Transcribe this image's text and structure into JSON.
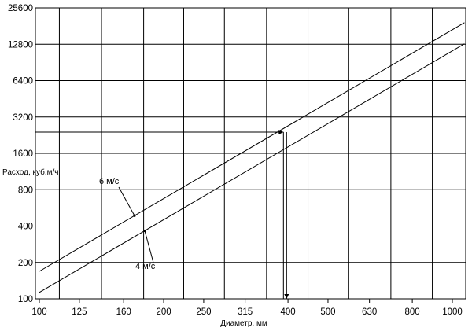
{
  "chart_data": {
    "type": "line",
    "title": "",
    "xlabel": "Диаметр, мм",
    "ylabel": "Расход, куб.м/ч",
    "x_scale": "log",
    "y_scale": "log",
    "grid": true,
    "legend": "none",
    "x_ticks": [
      100,
      125,
      160,
      200,
      250,
      315,
      400,
      500,
      630,
      800,
      1000
    ],
    "x_tick_labels": [
      "100",
      "125",
      "160",
      "200",
      "250",
      "315",
      "400",
      "500",
      "630",
      "800",
      "1000"
    ],
    "y_ticks": [
      100,
      200,
      400,
      800,
      1600,
      3200,
      6400,
      12800,
      25600
    ],
    "y_tick_labels": [
      "100",
      "200",
      "400",
      "800",
      "1600",
      "3200",
      "6400",
      "12800",
      "25600"
    ],
    "xlim": [
      100,
      1000
    ],
    "ylim": [
      100,
      25600
    ],
    "series": [
      {
        "name": "6 м/с",
        "points": [
          [
            100,
            169
          ],
          [
            1070,
            19300
          ]
        ]
      },
      {
        "name": "4 м/с",
        "points": [
          [
            100,
            113
          ],
          [
            1070,
            12900
          ]
        ]
      }
    ],
    "annotation": {
      "x": 390,
      "y": 2400
    }
  }
}
